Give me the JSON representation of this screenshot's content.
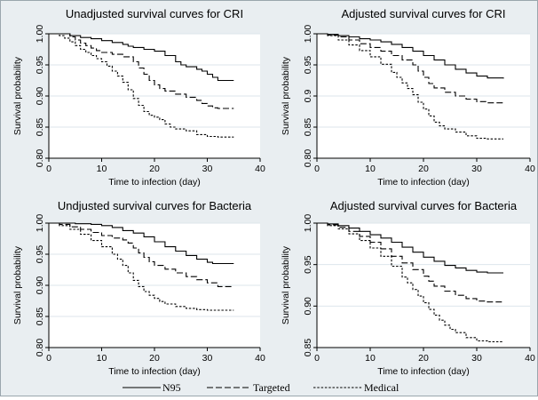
{
  "chart_data": [
    {
      "type": "line",
      "title": "Unadjusted survival curves for CRI",
      "xlabel": "Time to infection (day)",
      "ylabel": "Survival probability",
      "xlim": [
        0,
        40
      ],
      "ylim": [
        0.8,
        1.0
      ],
      "xticks": [
        0,
        10,
        20,
        30,
        40
      ],
      "yticks": [
        0.8,
        0.85,
        0.9,
        0.95,
        1.0
      ],
      "ytick_labels": [
        "0.80",
        "0.85",
        "0.90",
        "0.95",
        "1.00"
      ],
      "grid": true,
      "series": [
        {
          "name": "N95",
          "style": "solid",
          "step": true,
          "x": [
            0,
            2,
            4,
            6,
            8,
            10,
            12,
            14,
            15,
            16,
            18,
            20,
            22,
            24,
            25,
            26,
            28,
            29,
            30,
            31,
            32,
            35
          ],
          "y": [
            1.0,
            1.0,
            0.997,
            0.994,
            0.992,
            0.989,
            0.986,
            0.983,
            0.98,
            0.978,
            0.975,
            0.972,
            0.965,
            0.955,
            0.95,
            0.947,
            0.943,
            0.94,
            0.935,
            0.93,
            0.925,
            0.925
          ]
        },
        {
          "name": "Targeted",
          "style": "dashed",
          "step": true,
          "x": [
            0,
            2,
            4,
            5,
            6,
            7,
            8,
            9,
            10,
            12,
            14,
            16,
            17,
            18,
            19,
            20,
            21,
            22,
            24,
            26,
            28,
            29,
            30,
            31,
            32,
            35
          ],
          "y": [
            1.0,
            1.0,
            0.995,
            0.99,
            0.985,
            0.981,
            0.977,
            0.973,
            0.97,
            0.967,
            0.963,
            0.955,
            0.945,
            0.935,
            0.925,
            0.918,
            0.912,
            0.908,
            0.903,
            0.898,
            0.893,
            0.888,
            0.884,
            0.881,
            0.88,
            0.88
          ]
        },
        {
          "name": "Medical",
          "style": "dotted",
          "step": true,
          "x": [
            0,
            2,
            3,
            4,
            5,
            6,
            7,
            8,
            9,
            10,
            11,
            12,
            13,
            14,
            15,
            16,
            17,
            18,
            19,
            20,
            21,
            22,
            23,
            24,
            26,
            28,
            30,
            32,
            35
          ],
          "y": [
            1.0,
            0.997,
            0.993,
            0.987,
            0.981,
            0.975,
            0.97,
            0.965,
            0.96,
            0.955,
            0.948,
            0.94,
            0.932,
            0.922,
            0.91,
            0.896,
            0.885,
            0.875,
            0.869,
            0.866,
            0.862,
            0.855,
            0.85,
            0.847,
            0.844,
            0.838,
            0.835,
            0.834,
            0.834
          ]
        }
      ]
    },
    {
      "type": "line",
      "title": "Adjusted survival curves for CRI",
      "xlabel": "Time to infection (day)",
      "ylabel": "Survival probability",
      "xlim": [
        0,
        40
      ],
      "ylim": [
        0.8,
        1.0
      ],
      "xticks": [
        0,
        10,
        20,
        30,
        40
      ],
      "yticks": [
        0.8,
        0.85,
        0.9,
        0.95,
        1.0
      ],
      "ytick_labels": [
        "0.80",
        "0.85",
        "0.9",
        "0.95",
        "1.00"
      ],
      "grid": true,
      "series": [
        {
          "name": "N95",
          "style": "solid",
          "step": true,
          "x": [
            0,
            2,
            4,
            6,
            8,
            10,
            12,
            14,
            16,
            18,
            20,
            22,
            24,
            26,
            28,
            30,
            32,
            35
          ],
          "y": [
            1.0,
            0.999,
            0.997,
            0.995,
            0.992,
            0.99,
            0.987,
            0.983,
            0.978,
            0.972,
            0.965,
            0.958,
            0.95,
            0.943,
            0.937,
            0.932,
            0.929,
            0.928
          ]
        },
        {
          "name": "Targeted",
          "style": "dashed",
          "step": true,
          "x": [
            0,
            2,
            4,
            6,
            8,
            10,
            12,
            14,
            16,
            18,
            19,
            20,
            21,
            22,
            24,
            26,
            28,
            30,
            32,
            35
          ],
          "y": [
            1.0,
            0.998,
            0.995,
            0.99,
            0.984,
            0.978,
            0.972,
            0.965,
            0.958,
            0.95,
            0.94,
            0.93,
            0.92,
            0.913,
            0.906,
            0.9,
            0.895,
            0.891,
            0.889,
            0.889
          ]
        },
        {
          "name": "Medical",
          "style": "dotted",
          "step": true,
          "x": [
            0,
            2,
            4,
            6,
            8,
            10,
            12,
            14,
            15,
            16,
            17,
            18,
            19,
            20,
            21,
            22,
            23,
            24,
            26,
            28,
            30,
            32,
            35
          ],
          "y": [
            1.0,
            0.997,
            0.99,
            0.982,
            0.973,
            0.963,
            0.951,
            0.938,
            0.93,
            0.921,
            0.912,
            0.902,
            0.89,
            0.879,
            0.868,
            0.858,
            0.852,
            0.847,
            0.842,
            0.836,
            0.832,
            0.831,
            0.831
          ]
        }
      ]
    },
    {
      "type": "line",
      "title": "Undjusted survival curves for Bacteria",
      "xlabel": "Time to infection (day)",
      "ylabel": "Survival probability",
      "xlim": [
        0,
        40
      ],
      "ylim": [
        0.8,
        1.0
      ],
      "xticks": [
        0,
        10,
        20,
        30,
        40
      ],
      "yticks": [
        0.8,
        0.85,
        0.9,
        0.95,
        1.0
      ],
      "ytick_labels": [
        "0.80",
        "0.85",
        "0.90",
        "0.95",
        "1.00"
      ],
      "grid": true,
      "series": [
        {
          "name": "N95",
          "style": "solid",
          "step": true,
          "x": [
            0,
            5,
            8,
            10,
            12,
            14,
            16,
            18,
            20,
            22,
            24,
            26,
            28,
            30,
            31,
            35
          ],
          "y": [
            1.0,
            0.999,
            0.998,
            0.996,
            0.993,
            0.988,
            0.984,
            0.978,
            0.97,
            0.962,
            0.955,
            0.948,
            0.942,
            0.937,
            0.935,
            0.935
          ]
        },
        {
          "name": "Targeted",
          "style": "dashed",
          "step": true,
          "x": [
            0,
            2,
            4,
            6,
            8,
            10,
            12,
            14,
            15,
            16,
            17,
            18,
            19,
            20,
            22,
            24,
            26,
            28,
            30,
            32,
            35
          ],
          "y": [
            1.0,
            0.998,
            0.994,
            0.99,
            0.985,
            0.98,
            0.976,
            0.973,
            0.968,
            0.96,
            0.952,
            0.945,
            0.938,
            0.932,
            0.926,
            0.92,
            0.914,
            0.909,
            0.904,
            0.898,
            0.898
          ]
        },
        {
          "name": "Medical",
          "style": "dotted",
          "step": true,
          "x": [
            0,
            2,
            4,
            6,
            8,
            10,
            12,
            13,
            14,
            15,
            16,
            17,
            18,
            19,
            20,
            21,
            22,
            24,
            26,
            28,
            30,
            35
          ],
          "y": [
            1.0,
            0.996,
            0.99,
            0.982,
            0.972,
            0.962,
            0.95,
            0.942,
            0.932,
            0.92,
            0.908,
            0.898,
            0.89,
            0.884,
            0.879,
            0.874,
            0.87,
            0.866,
            0.863,
            0.861,
            0.86,
            0.86
          ]
        }
      ]
    },
    {
      "type": "line",
      "title": "Adjusted survival curves for Bacteria",
      "xlabel": "Time to infection (day)",
      "ylabel": "Survival probability",
      "xlim": [
        0,
        40
      ],
      "ylim": [
        0.85,
        1.0
      ],
      "xticks": [
        0,
        10,
        20,
        30,
        40
      ],
      "yticks": [
        0.85,
        0.9,
        0.95,
        1.0
      ],
      "ytick_labels": [
        "0.85",
        "0.90",
        "0.95",
        "1.00"
      ],
      "grid": true,
      "series": [
        {
          "name": "N95",
          "style": "solid",
          "step": true,
          "x": [
            0,
            2,
            4,
            6,
            8,
            10,
            12,
            14,
            16,
            18,
            20,
            22,
            24,
            26,
            28,
            30,
            32,
            35
          ],
          "y": [
            1.0,
            0.999,
            0.997,
            0.994,
            0.99,
            0.986,
            0.982,
            0.977,
            0.971,
            0.965,
            0.959,
            0.954,
            0.949,
            0.946,
            0.943,
            0.941,
            0.94,
            0.94
          ]
        },
        {
          "name": "Targeted",
          "style": "dashed",
          "step": true,
          "x": [
            0,
            2,
            4,
            6,
            8,
            10,
            12,
            14,
            16,
            18,
            20,
            21,
            22,
            24,
            26,
            28,
            30,
            32,
            35
          ],
          "y": [
            1.0,
            0.998,
            0.995,
            0.99,
            0.984,
            0.977,
            0.969,
            0.96,
            0.952,
            0.944,
            0.936,
            0.93,
            0.924,
            0.918,
            0.913,
            0.909,
            0.906,
            0.905,
            0.905
          ]
        },
        {
          "name": "Medical",
          "style": "dotted",
          "step": true,
          "x": [
            0,
            2,
            4,
            6,
            8,
            10,
            12,
            14,
            16,
            17,
            18,
            19,
            20,
            21,
            22,
            23,
            24,
            25,
            26,
            28,
            30,
            32,
            35
          ],
          "y": [
            1.0,
            0.997,
            0.993,
            0.987,
            0.979,
            0.97,
            0.96,
            0.948,
            0.935,
            0.928,
            0.92,
            0.912,
            0.904,
            0.896,
            0.889,
            0.883,
            0.877,
            0.872,
            0.868,
            0.862,
            0.858,
            0.857,
            0.857
          ]
        }
      ]
    }
  ],
  "legend": {
    "placement": "bottom",
    "items": [
      {
        "name": "N95",
        "style": "solid"
      },
      {
        "name": "Targeted",
        "style": "dashed"
      },
      {
        "name": "Medical",
        "style": "dotted"
      }
    ]
  },
  "colors": {
    "figure_background": "#e9eef1",
    "plot_background": "#ffffff",
    "gridline": "#dde6eb",
    "line": "#000000"
  }
}
